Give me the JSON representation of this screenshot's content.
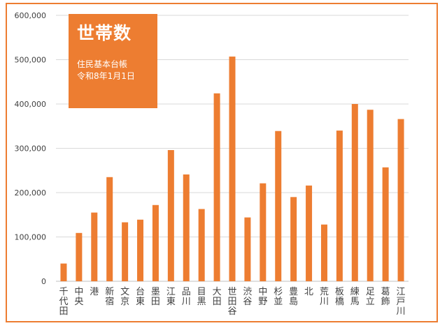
{
  "chart_data": {
    "type": "bar",
    "title": "世帯数",
    "subtitle_lines": [
      "住民基本台帳",
      "令和8年1月1日"
    ],
    "categories": [
      "千代田",
      "中央",
      "港",
      "新宿",
      "文京",
      "台東",
      "墨田",
      "江東",
      "品川",
      "目黒",
      "大田",
      "世田谷",
      "渋谷",
      "中野",
      "杉並",
      "豊島",
      "北",
      "荒川",
      "板橋",
      "練馬",
      "足立",
      "葛飾",
      "江戸川"
    ],
    "values": [
      40000,
      109000,
      155000,
      235000,
      133000,
      139000,
      172000,
      296000,
      241000,
      163000,
      424000,
      507000,
      144000,
      221000,
      339000,
      190000,
      216000,
      128000,
      340000,
      400000,
      387000,
      257000,
      366000
    ],
    "ylim": [
      0,
      600000
    ],
    "yticks": [
      "0",
      "100,000",
      "200,000",
      "300,000",
      "400,000",
      "500,000",
      "600,000"
    ],
    "ytick_values": [
      0,
      100000,
      200000,
      300000,
      400000,
      500000,
      600000
    ],
    "grid": true,
    "xlabel": "",
    "ylabel": "",
    "bar_color": "#ED7D31",
    "grid_color": "#D9D9D9"
  }
}
